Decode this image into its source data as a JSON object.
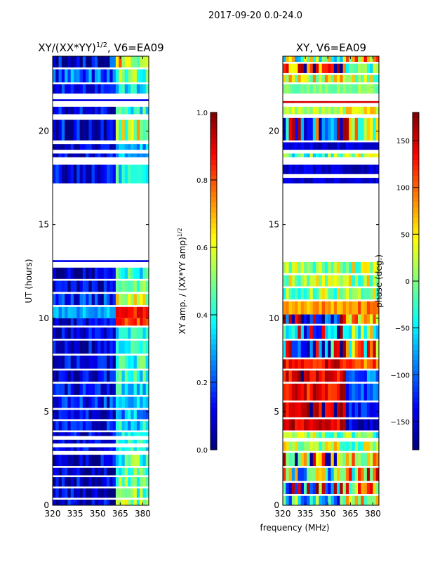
{
  "suptitle": "2017-09-20 0.0-24.0",
  "shared_xlabel": "frequency (MHz)",
  "chart_data": [
    {
      "type": "heatmap",
      "title": "XY/(XX*YY)",
      "title_exponent": "1/2",
      "title_suffix": ", V6=EA09",
      "xlabel": "",
      "ylabel": "UT (hours)",
      "xlim": [
        320,
        384
      ],
      "ylim": [
        0,
        24
      ],
      "xticks": [
        "320",
        "335",
        "350",
        "365",
        "380"
      ],
      "yticks": [
        "0",
        "5",
        "10",
        "15",
        "20"
      ],
      "colormap": "jet",
      "colorbar": {
        "label": "XY amp. / (XX*YY amp)",
        "label_exponent": "1/2",
        "range": [
          0.0,
          1.0
        ],
        "ticks": [
          "0.0",
          "0.2",
          "0.4",
          "0.6",
          "0.8",
          "1.0"
        ]
      },
      "split_freq_mhz": 362,
      "bands_note": "rows: [start_hour, end_hour, value_below_split, value_above_split, noise]",
      "bands": [
        [
          0,
          0.3,
          0.05,
          0.5,
          0.15
        ],
        [
          0.4,
          0.9,
          0.05,
          0.45,
          0.15
        ],
        [
          1.0,
          1.5,
          0.05,
          0.5,
          0.15
        ],
        [
          1.6,
          2.0,
          0.05,
          0.45,
          0.15
        ],
        [
          2.1,
          2.7,
          0.05,
          0.45,
          0.15
        ],
        [
          2.9,
          3.1,
          0.1,
          0.4,
          0.1
        ],
        [
          3.3,
          3.5,
          0.1,
          0.4,
          0.1
        ],
        [
          3.7,
          3.9,
          0.1,
          0.35,
          0.1
        ],
        [
          4.0,
          4.5,
          0.12,
          0.35,
          0.12
        ],
        [
          4.6,
          5.1,
          0.12,
          0.3,
          0.12
        ],
        [
          5.2,
          5.8,
          0.15,
          0.35,
          0.12
        ],
        [
          5.9,
          6.5,
          0.12,
          0.35,
          0.12
        ],
        [
          6.6,
          7.2,
          0.1,
          0.4,
          0.12
        ],
        [
          7.3,
          8.0,
          0.1,
          0.4,
          0.12
        ],
        [
          8.1,
          8.8,
          0.08,
          0.4,
          0.12
        ],
        [
          8.9,
          9.5,
          0.08,
          0.4,
          0.12
        ],
        [
          9.6,
          10.0,
          0.1,
          0.8,
          0.1
        ],
        [
          10.0,
          10.6,
          0.3,
          0.85,
          0.08
        ],
        [
          10.7,
          11.3,
          0.15,
          0.6,
          0.15
        ],
        [
          11.4,
          12.0,
          0.08,
          0.45,
          0.12
        ],
        [
          12.1,
          12.7,
          0.05,
          0.4,
          0.12
        ],
        [
          13.0,
          13.1,
          0.1,
          0.1,
          0.02
        ],
        [
          17.2,
          18.2,
          0.1,
          0.4,
          0.12
        ],
        [
          18.6,
          18.8,
          0.1,
          0.3,
          0.1
        ],
        [
          19.0,
          19.3,
          0.1,
          0.3,
          0.1
        ],
        [
          19.5,
          20.6,
          0.05,
          0.55,
          0.2
        ],
        [
          20.9,
          21.3,
          0.1,
          0.4,
          0.12
        ],
        [
          21.6,
          21.7,
          0.1,
          0.1,
          0.02
        ],
        [
          22.0,
          22.5,
          0.15,
          0.35,
          0.1
        ],
        [
          22.6,
          23.3,
          0.2,
          0.5,
          0.15
        ],
        [
          23.4,
          24,
          0.05,
          0.6,
          0.2
        ]
      ]
    },
    {
      "type": "heatmap",
      "title": "XY, V6=EA09",
      "xlabel": "",
      "ylabel": "",
      "xlim": [
        320,
        384
      ],
      "ylim": [
        0,
        24
      ],
      "xticks": [
        "320",
        "335",
        "350",
        "365",
        "380"
      ],
      "yticks": [
        "0",
        "5",
        "10",
        "15",
        "20"
      ],
      "colormap": "jet",
      "colorbar": {
        "label": "phase (deg.)",
        "range": [
          -180,
          180
        ],
        "ticks": [
          "−150",
          "−100",
          "−50",
          "0",
          "50",
          "100",
          "150"
        ]
      },
      "split_freq_mhz": 362,
      "bands_note": "rows: [start_hour, end_hour, value_below_split, value_above_split, noise]",
      "bands": [
        [
          0,
          0.5,
          -60,
          20,
          100
        ],
        [
          0.6,
          1.2,
          -100,
          80,
          120
        ],
        [
          1.3,
          2.0,
          0,
          60,
          120
        ],
        [
          2.1,
          2.8,
          90,
          40,
          120
        ],
        [
          2.9,
          3.4,
          20,
          10,
          60
        ],
        [
          3.6,
          3.9,
          0,
          -20,
          60
        ],
        [
          4.0,
          4.6,
          150,
          -150,
          30
        ],
        [
          4.7,
          5.5,
          150,
          -120,
          40
        ],
        [
          5.6,
          6.5,
          140,
          -110,
          40
        ],
        [
          6.6,
          7.2,
          150,
          -100,
          40
        ],
        [
          7.3,
          7.8,
          140,
          100,
          40
        ],
        [
          7.9,
          8.8,
          -120,
          60,
          120
        ],
        [
          8.9,
          9.6,
          -130,
          40,
          120
        ],
        [
          9.7,
          10.2,
          -150,
          60,
          80
        ],
        [
          10.2,
          10.9,
          80,
          90,
          30
        ],
        [
          11.0,
          11.6,
          10,
          20,
          60
        ],
        [
          11.7,
          12.3,
          20,
          20,
          60
        ],
        [
          12.4,
          13.0,
          10,
          20,
          60
        ],
        [
          17.2,
          17.5,
          -150,
          -150,
          20
        ],
        [
          17.7,
          18.2,
          -150,
          -160,
          20
        ],
        [
          18.6,
          18.8,
          -10,
          30,
          60
        ],
        [
          19.0,
          19.4,
          -150,
          -150,
          20
        ],
        [
          19.5,
          20.7,
          -150,
          60,
          120
        ],
        [
          20.9,
          21.3,
          20,
          50,
          30
        ],
        [
          21.5,
          21.6,
          150,
          150,
          5
        ],
        [
          22.0,
          22.5,
          0,
          0,
          20
        ],
        [
          22.6,
          23.0,
          40,
          20,
          60
        ],
        [
          23.1,
          23.6,
          120,
          20,
          80
        ],
        [
          23.7,
          24,
          0,
          60,
          80
        ]
      ]
    }
  ]
}
